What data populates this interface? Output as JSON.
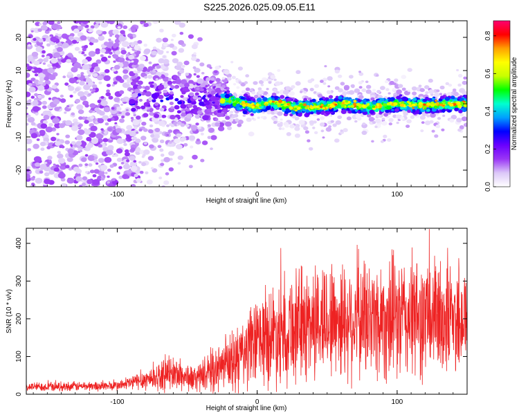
{
  "title": "S225.2026.025.09.05.E11",
  "chart_data": [
    {
      "type": "heatmap",
      "xlabel": "Height of straight line (km)",
      "ylabel": "Frequency (Hz)",
      "xlim": [
        -165,
        150
      ],
      "ylim": [
        -25,
        25
      ],
      "xticks": [
        -100,
        0,
        100
      ],
      "yticks": [
        -20,
        -10,
        0,
        10,
        20
      ],
      "colorbar": {
        "label": "Normalized spectral amplitude",
        "ticks": [
          0.0,
          0.2,
          0.4,
          0.6,
          0.8
        ],
        "range": [
          0.0,
          0.88
        ],
        "colormap": [
          "#ffffff",
          "#dcc8f8",
          "#9a36f5",
          "#6a00ff",
          "#0000ff",
          "#00a0ff",
          "#00ffd0",
          "#00ff00",
          "#c8ff00",
          "#ffff00",
          "#ffa000",
          "#ff0000",
          "#ff0070"
        ]
      },
      "signal_track": [
        {
          "x": -95,
          "f": 2.0
        },
        {
          "x": -70,
          "f": 2.0
        },
        {
          "x": -45,
          "f": 1.0
        },
        {
          "x": -30,
          "f": 1.0
        },
        {
          "x": -20,
          "f": 1.0
        },
        {
          "x": -10,
          "f": 0.0
        },
        {
          "x": 0,
          "f": -1.0
        },
        {
          "x": 10,
          "f": 0.5
        },
        {
          "x": 25,
          "f": -1.0
        },
        {
          "x": 40,
          "f": -1.0
        },
        {
          "x": 60,
          "f": 0.0
        },
        {
          "x": 80,
          "f": -1.0
        },
        {
          "x": 100,
          "f": 0.0
        },
        {
          "x": 120,
          "f": -0.5
        },
        {
          "x": 140,
          "f": 0.0
        },
        {
          "x": 150,
          "f": 0.0
        }
      ],
      "noise_region_x": [
        -165,
        -90
      ],
      "scatter_region_x": [
        -90,
        -20
      ]
    },
    {
      "type": "line",
      "color": "#ee2222",
      "xlabel": "Height of straight line (km)",
      "ylabel": "SNR (10 * v/v)",
      "xlim": [
        -165,
        150
      ],
      "ylim": [
        0,
        440
      ],
      "xticks": [
        -100,
        0,
        100
      ],
      "yticks": [
        0,
        100,
        200,
        300,
        400
      ],
      "envelope": [
        {
          "x": -165,
          "mean": 20,
          "spread": 14
        },
        {
          "x": -100,
          "mean": 22,
          "spread": 16
        },
        {
          "x": -85,
          "mean": 35,
          "spread": 28
        },
        {
          "x": -60,
          "mean": 55,
          "spread": 55
        },
        {
          "x": -45,
          "mean": 40,
          "spread": 40
        },
        {
          "x": -30,
          "mean": 65,
          "spread": 70
        },
        {
          "x": -15,
          "mean": 90,
          "spread": 110
        },
        {
          "x": 0,
          "mean": 140,
          "spread": 140
        },
        {
          "x": 20,
          "mean": 175,
          "spread": 180
        },
        {
          "x": 50,
          "mean": 200,
          "spread": 190
        },
        {
          "x": 100,
          "mean": 200,
          "spread": 200
        },
        {
          "x": 150,
          "mean": 205,
          "spread": 190
        }
      ]
    }
  ]
}
